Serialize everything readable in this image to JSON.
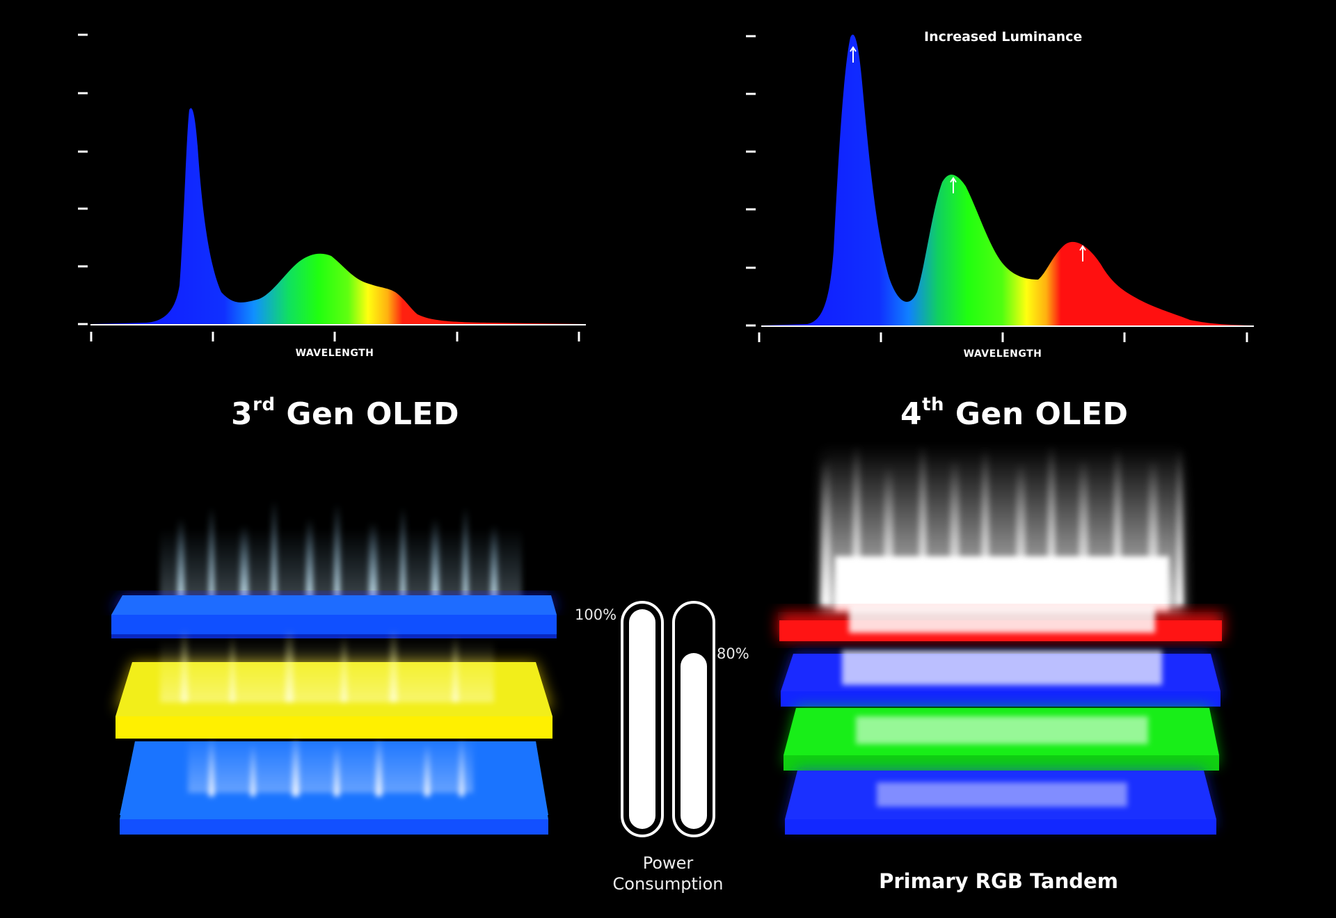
{
  "charts": [
    {
      "ylabel_ticks": 6,
      "xlabel": "WAVELENGTH",
      "annotation": ""
    },
    {
      "ylabel_ticks": 6,
      "xlabel": "WAVELENGTH",
      "annotation": "Increased Luminance"
    }
  ],
  "chart_data": [
    {
      "type": "area",
      "xlabel": "WAVELENGTH",
      "peaks": [
        {
          "color": "blue",
          "position": 0.2,
          "relative_height": 0.74
        },
        {
          "color": "green",
          "position": 0.48,
          "relative_height": 0.24
        },
        {
          "color": "red",
          "position": 0.62,
          "relative_height": 0.12
        }
      ]
    },
    {
      "type": "area",
      "xlabel": "WAVELENGTH",
      "annotation": "Increased Luminance",
      "peaks": [
        {
          "color": "blue",
          "position": 0.19,
          "relative_height": 1.0
        },
        {
          "color": "green",
          "position": 0.39,
          "relative_height": 0.52
        },
        {
          "color": "red",
          "position": 0.66,
          "relative_height": 0.29
        }
      ]
    }
  ],
  "left_panel": {
    "title_num": "3",
    "title_sup": "rd",
    "title_rest": " Gen OLED",
    "layers": [
      "blue",
      "yellow",
      "blue"
    ]
  },
  "right_panel": {
    "title_num": "4",
    "title_sup": "th",
    "title_rest": " Gen OLED",
    "layers": [
      "red",
      "blue",
      "green",
      "blue"
    ],
    "caption": "Primary RGB Tandem"
  },
  "power": {
    "bar1_label": "100%",
    "bar1_value": 1.0,
    "bar2_label": "80%",
    "bar2_value": 0.8,
    "line1": "Power",
    "line2": "Consumption"
  },
  "colors": {
    "background": "#000000",
    "blue": "#1428ff",
    "yellow": "#fff000",
    "green": "#10ff10",
    "red": "#ff1010"
  }
}
